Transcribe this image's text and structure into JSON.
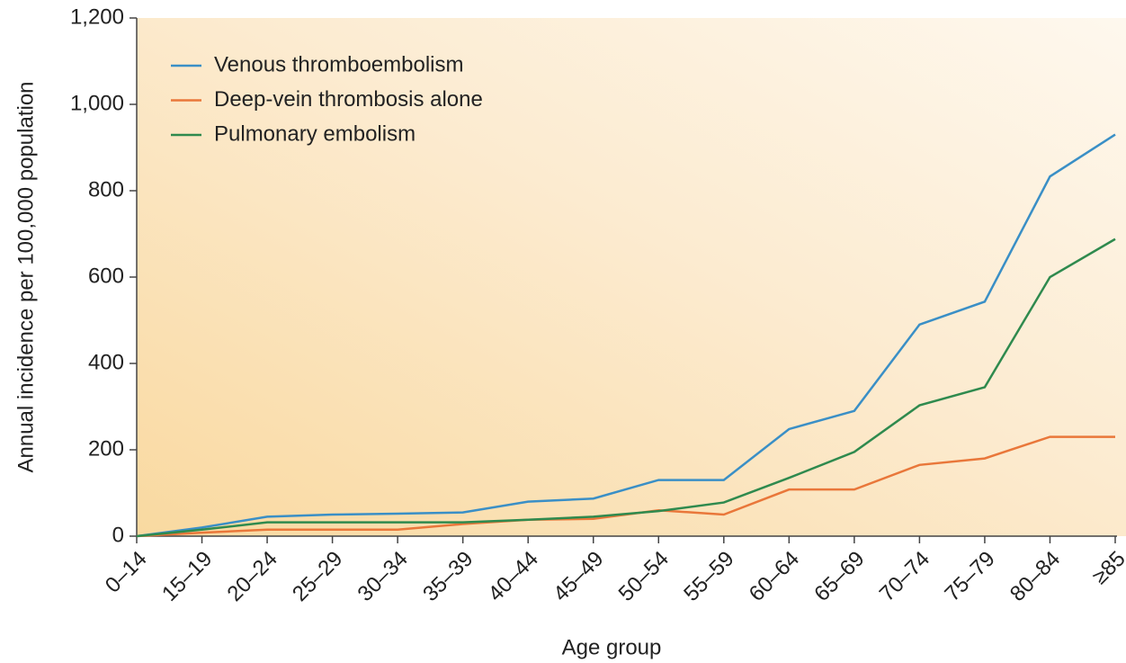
{
  "chart_data": {
    "type": "line",
    "x_label": "Age group",
    "y_label": "Annual incidence per 100,000 population",
    "categories": [
      "0–14",
      "15–19",
      "20–24",
      "25–29",
      "30–34",
      "35–39",
      "40–44",
      "45–49",
      "50–54",
      "55–59",
      "60–64",
      "65–69",
      "70–74",
      "75–79",
      "80–84",
      "≥85"
    ],
    "series": [
      {
        "name": "Venous thromboembolism",
        "color": "#3a8fc6",
        "values": [
          0,
          20,
          45,
          50,
          52,
          55,
          80,
          87,
          130,
          130,
          248,
          290,
          490,
          543,
          833,
          930
        ]
      },
      {
        "name": "Deep-vein thrombosis alone",
        "color": "#e9773a",
        "values": [
          0,
          8,
          15,
          15,
          15,
          28,
          38,
          40,
          60,
          50,
          108,
          108,
          165,
          180,
          230,
          230
        ]
      },
      {
        "name": "Pulmonary embolism",
        "color": "#2f8a4e",
        "values": [
          0,
          15,
          32,
          32,
          32,
          32,
          38,
          45,
          58,
          78,
          135,
          195,
          303,
          345,
          600,
          688
        ]
      }
    ],
    "ylim": [
      0,
      1200
    ],
    "yticks": [
      0,
      200,
      400,
      600,
      800,
      {
        "value": 1000,
        "label": "1,000"
      },
      {
        "value": 1200,
        "label": "1,200"
      }
    ],
    "legend": "upper left"
  }
}
